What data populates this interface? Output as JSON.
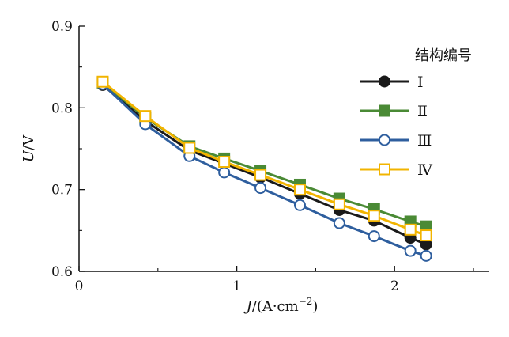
{
  "chart_data": {
    "type": "line",
    "title": "",
    "xlabel_italic": "J",
    "xlabel_rest": "/(A·cm",
    "xlabel_sup": "−2",
    "xlabel_close": ")",
    "ylabel_italic": "U",
    "ylabel_rest": "/V",
    "xlim": [
      0,
      2.6
    ],
    "ylim": [
      0.6,
      0.9
    ],
    "x_ticks": [
      0,
      1,
      2
    ],
    "x_tick_labels": [
      "0",
      "1",
      "2"
    ],
    "y_ticks": [
      0.6,
      0.7,
      0.8,
      0.9
    ],
    "y_tick_labels": [
      "0.6",
      "0.7",
      "0.8",
      "0.9"
    ],
    "legend": {
      "title": "结构编号",
      "placement": "upper-right"
    },
    "series": [
      {
        "name": "Ⅰ",
        "color": "#1a1a1a",
        "marker": "circle",
        "filled": true,
        "x": [
          0.15,
          0.42,
          0.7,
          0.92,
          1.15,
          1.4,
          1.65,
          1.87,
          2.1,
          2.2
        ],
        "y": [
          0.828,
          0.784,
          0.748,
          0.732,
          0.715,
          0.695,
          0.675,
          0.662,
          0.641,
          0.633
        ]
      },
      {
        "name": "Ⅱ",
        "color": "#4a8a35",
        "marker": "square",
        "filled": true,
        "x": [
          0.15,
          0.42,
          0.7,
          0.92,
          1.15,
          1.4,
          1.65,
          1.87,
          2.1,
          2.2
        ],
        "y": [
          0.831,
          0.788,
          0.753,
          0.738,
          0.723,
          0.706,
          0.689,
          0.676,
          0.661,
          0.655
        ]
      },
      {
        "name": "Ⅲ",
        "color": "#2e5e9e",
        "marker": "circle",
        "filled": false,
        "x": [
          0.15,
          0.42,
          0.7,
          0.92,
          1.15,
          1.4,
          1.65,
          1.87,
          2.1,
          2.2
        ],
        "y": [
          0.829,
          0.78,
          0.741,
          0.721,
          0.702,
          0.681,
          0.659,
          0.643,
          0.625,
          0.619
        ]
      },
      {
        "name": "Ⅳ",
        "color": "#f2b400",
        "marker": "square",
        "filled": false,
        "x": [
          0.15,
          0.42,
          0.7,
          0.92,
          1.15,
          1.4,
          1.65,
          1.87,
          2.1,
          2.2
        ],
        "y": [
          0.832,
          0.79,
          0.751,
          0.734,
          0.718,
          0.7,
          0.682,
          0.668,
          0.651,
          0.644
        ]
      }
    ]
  }
}
